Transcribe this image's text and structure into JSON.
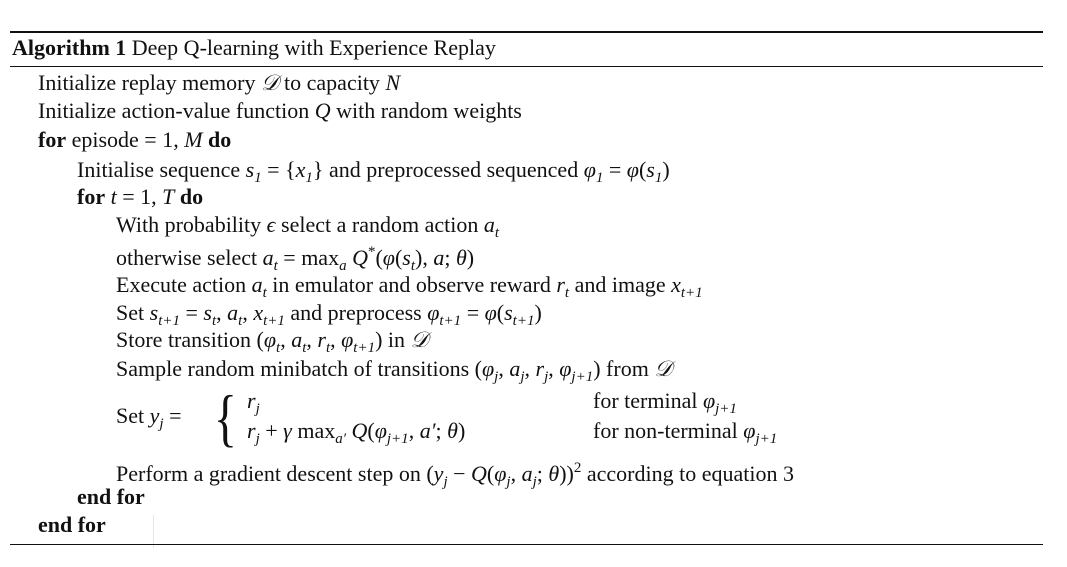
{
  "algorithm": {
    "label": "Algorithm 1",
    "title": "Deep Q-learning with Experience Replay",
    "lines": [
      [
        {
          "t": "t",
          "v": "Initialize replay memory "
        },
        {
          "t": "m",
          "v": "𝒟"
        },
        {
          "t": "t",
          "v": " to capacity "
        },
        {
          "t": "m",
          "v": "N"
        }
      ],
      [
        {
          "t": "t",
          "v": "Initialize action-value function "
        },
        {
          "t": "m",
          "v": "Q"
        },
        {
          "t": "t",
          "v": " with random weights"
        }
      ],
      [
        {
          "t": "k",
          "v": "for"
        },
        {
          "t": "t",
          "v": " episode = 1, "
        },
        {
          "t": "m",
          "v": "M"
        },
        {
          "t": "t",
          "v": " "
        },
        {
          "t": "k",
          "v": "do"
        }
      ],
      [
        {
          "t": "t",
          "v": "Initialise sequence "
        },
        {
          "t": "m",
          "v": "s"
        },
        {
          "t": "sub",
          "v": "1"
        },
        {
          "t": "r",
          "v": " = {"
        },
        {
          "t": "m",
          "v": "x"
        },
        {
          "t": "sub",
          "v": "1"
        },
        {
          "t": "r",
          "v": "}"
        },
        {
          "t": "t",
          "v": " and preprocessed sequenced "
        },
        {
          "t": "m",
          "v": "φ"
        },
        {
          "t": "sub",
          "v": "1"
        },
        {
          "t": "r",
          "v": " = "
        },
        {
          "t": "m",
          "v": "φ"
        },
        {
          "t": "r",
          "v": "("
        },
        {
          "t": "m",
          "v": "s"
        },
        {
          "t": "sub",
          "v": "1"
        },
        {
          "t": "r",
          "v": ")"
        }
      ],
      [
        {
          "t": "k",
          "v": "for"
        },
        {
          "t": "t",
          "v": " "
        },
        {
          "t": "m",
          "v": "t"
        },
        {
          "t": "r",
          "v": " = 1, "
        },
        {
          "t": "m",
          "v": "T"
        },
        {
          "t": "t",
          "v": " "
        },
        {
          "t": "k",
          "v": "do"
        }
      ],
      [
        {
          "t": "t",
          "v": "With probability "
        },
        {
          "t": "m",
          "v": "ϵ"
        },
        {
          "t": "t",
          "v": " select a random action "
        },
        {
          "t": "m",
          "v": "a"
        },
        {
          "t": "sub",
          "v": "t"
        }
      ],
      [
        {
          "t": "t",
          "v": "otherwise select "
        },
        {
          "t": "m",
          "v": "a"
        },
        {
          "t": "sub",
          "v": "t"
        },
        {
          "t": "r",
          "v": " = max"
        },
        {
          "t": "sub",
          "v": "a"
        },
        {
          "t": "r",
          "v": " "
        },
        {
          "t": "m",
          "v": "Q"
        },
        {
          "t": "sup",
          "v": "*"
        },
        {
          "t": "r",
          "v": "("
        },
        {
          "t": "m",
          "v": "φ"
        },
        {
          "t": "r",
          "v": "("
        },
        {
          "t": "m",
          "v": "s"
        },
        {
          "t": "sub",
          "v": "t"
        },
        {
          "t": "r",
          "v": "), "
        },
        {
          "t": "m",
          "v": "a"
        },
        {
          "t": "r",
          "v": "; "
        },
        {
          "t": "m",
          "v": "θ"
        },
        {
          "t": "r",
          "v": ")"
        }
      ],
      [
        {
          "t": "t",
          "v": "Execute action "
        },
        {
          "t": "m",
          "v": "a"
        },
        {
          "t": "sub",
          "v": "t"
        },
        {
          "t": "t",
          "v": " in emulator and observe reward "
        },
        {
          "t": "m",
          "v": "r"
        },
        {
          "t": "sub",
          "v": "t"
        },
        {
          "t": "t",
          "v": " and image "
        },
        {
          "t": "m",
          "v": "x"
        },
        {
          "t": "sub",
          "v": "t+1"
        }
      ],
      [
        {
          "t": "t",
          "v": "Set "
        },
        {
          "t": "m",
          "v": "s"
        },
        {
          "t": "sub",
          "v": "t+1"
        },
        {
          "t": "r",
          "v": " = "
        },
        {
          "t": "m",
          "v": "s"
        },
        {
          "t": "sub",
          "v": "t"
        },
        {
          "t": "r",
          "v": ", "
        },
        {
          "t": "m",
          "v": "a"
        },
        {
          "t": "sub",
          "v": "t"
        },
        {
          "t": "r",
          "v": ", "
        },
        {
          "t": "m",
          "v": "x"
        },
        {
          "t": "sub",
          "v": "t+1"
        },
        {
          "t": "t",
          "v": " and preprocess "
        },
        {
          "t": "m",
          "v": "φ"
        },
        {
          "t": "sub",
          "v": "t+1"
        },
        {
          "t": "r",
          "v": " = "
        },
        {
          "t": "m",
          "v": "φ"
        },
        {
          "t": "r",
          "v": "("
        },
        {
          "t": "m",
          "v": "s"
        },
        {
          "t": "sub",
          "v": "t+1"
        },
        {
          "t": "r",
          "v": ")"
        }
      ],
      [
        {
          "t": "t",
          "v": "Store transition "
        },
        {
          "t": "r",
          "v": "("
        },
        {
          "t": "m",
          "v": "φ"
        },
        {
          "t": "sub",
          "v": "t"
        },
        {
          "t": "r",
          "v": ", "
        },
        {
          "t": "m",
          "v": "a"
        },
        {
          "t": "sub",
          "v": "t"
        },
        {
          "t": "r",
          "v": ", "
        },
        {
          "t": "m",
          "v": "r"
        },
        {
          "t": "sub",
          "v": "t"
        },
        {
          "t": "r",
          "v": ", "
        },
        {
          "t": "m",
          "v": "φ"
        },
        {
          "t": "sub",
          "v": "t+1"
        },
        {
          "t": "r",
          "v": ")"
        },
        {
          "t": "t",
          "v": " in "
        },
        {
          "t": "m",
          "v": "𝒟"
        }
      ],
      [
        {
          "t": "t",
          "v": "Sample random minibatch of transitions "
        },
        {
          "t": "r",
          "v": "("
        },
        {
          "t": "m",
          "v": "φ"
        },
        {
          "t": "sub",
          "v": "j"
        },
        {
          "t": "r",
          "v": ", "
        },
        {
          "t": "m",
          "v": "a"
        },
        {
          "t": "sub",
          "v": "j"
        },
        {
          "t": "r",
          "v": ", "
        },
        {
          "t": "m",
          "v": "r"
        },
        {
          "t": "sub",
          "v": "j"
        },
        {
          "t": "r",
          "v": ", "
        },
        {
          "t": "m",
          "v": "φ"
        },
        {
          "t": "sub",
          "v": "j+1"
        },
        {
          "t": "r",
          "v": ")"
        },
        {
          "t": "t",
          "v": " from "
        },
        {
          "t": "m",
          "v": "𝒟"
        }
      ],
      [
        {
          "t": "t",
          "v": "Set "
        },
        {
          "t": "m",
          "v": "y"
        },
        {
          "t": "sub",
          "v": "j"
        },
        {
          "t": "r",
          "v": " ="
        }
      ],
      [
        {
          "t": "m",
          "v": "r"
        },
        {
          "t": "sub",
          "v": "j"
        }
      ],
      [
        {
          "t": "t",
          "v": "for terminal "
        },
        {
          "t": "m",
          "v": "φ"
        },
        {
          "t": "sub",
          "v": "j+1"
        }
      ],
      [
        {
          "t": "m",
          "v": "r"
        },
        {
          "t": "sub",
          "v": "j"
        },
        {
          "t": "r",
          "v": " + "
        },
        {
          "t": "m",
          "v": "γ"
        },
        {
          "t": "r",
          "v": " max"
        },
        {
          "t": "sub",
          "v": "a′"
        },
        {
          "t": "r",
          "v": " "
        },
        {
          "t": "m",
          "v": "Q"
        },
        {
          "t": "r",
          "v": "("
        },
        {
          "t": "m",
          "v": "φ"
        },
        {
          "t": "sub",
          "v": "j+1"
        },
        {
          "t": "r",
          "v": ", "
        },
        {
          "t": "m",
          "v": "a′"
        },
        {
          "t": "r",
          "v": "; "
        },
        {
          "t": "m",
          "v": "θ"
        },
        {
          "t": "r",
          "v": ")"
        }
      ],
      [
        {
          "t": "t",
          "v": "for non-terminal "
        },
        {
          "t": "m",
          "v": "φ"
        },
        {
          "t": "sub",
          "v": "j+1"
        }
      ],
      [
        {
          "t": "t",
          "v": "Perform a gradient descent step on "
        },
        {
          "t": "r",
          "v": "("
        },
        {
          "t": "m",
          "v": "y"
        },
        {
          "t": "sub",
          "v": "j"
        },
        {
          "t": "r",
          "v": " − "
        },
        {
          "t": "m",
          "v": "Q"
        },
        {
          "t": "r",
          "v": "("
        },
        {
          "t": "m",
          "v": "φ"
        },
        {
          "t": "sub",
          "v": "j"
        },
        {
          "t": "r",
          "v": ", "
        },
        {
          "t": "m",
          "v": "a"
        },
        {
          "t": "sub",
          "v": "j"
        },
        {
          "t": "r",
          "v": "; "
        },
        {
          "t": "m",
          "v": "θ"
        },
        {
          "t": "r",
          "v": "))"
        },
        {
          "t": "sup",
          "v": "2"
        },
        {
          "t": "t",
          "v": " according to equation 3"
        }
      ],
      [
        {
          "t": "k",
          "v": "end for"
        }
      ],
      [
        {
          "t": "k",
          "v": "end for"
        }
      ]
    ]
  }
}
